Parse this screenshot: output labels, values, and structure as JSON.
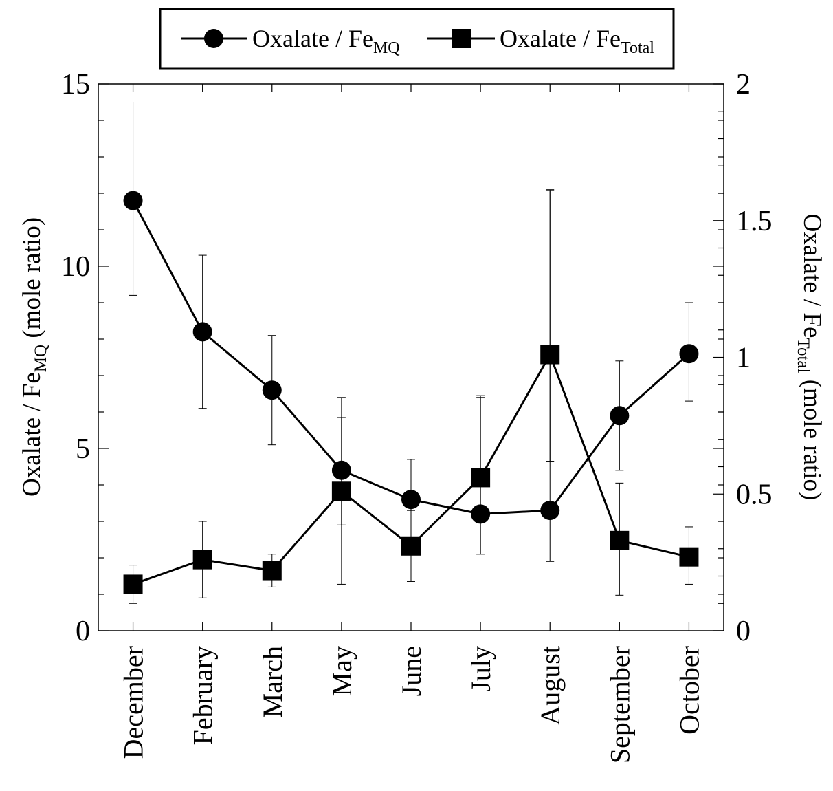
{
  "chart_data": {
    "type": "line",
    "categories": [
      "December",
      "February",
      "March",
      "May",
      "June",
      "July",
      "August",
      "September",
      "October"
    ],
    "legend": {
      "placement": "top-center",
      "items": [
        {
          "base": "Oxalate / Fe",
          "sub": "MQ",
          "marker": "circle"
        },
        {
          "base": "Oxalate / Fe",
          "sub": "Total",
          "marker": "square"
        }
      ]
    },
    "y_left": {
      "label_base": "Oxalate / Fe",
      "label_sub": "MQ",
      "label_tail": " (mole ratio)",
      "lim": [
        0,
        15
      ],
      "ticks": [
        "0",
        "5",
        "10",
        "15"
      ],
      "tick_values": [
        0,
        5,
        10,
        15
      ],
      "minor_step": 1
    },
    "y_right": {
      "label_base": "Oxalate / Fe",
      "label_sub": "Total",
      "label_tail": " (mole ratio)",
      "lim": [
        0,
        2
      ],
      "ticks": [
        "0",
        "0.5",
        "1",
        "1.5",
        "2"
      ],
      "tick_values": [
        0,
        0.5,
        1,
        1.5,
        2
      ],
      "minor_step": 0.1
    },
    "series": [
      {
        "marker": "circle",
        "axis": "left",
        "values": [
          11.8,
          8.2,
          6.6,
          4.4,
          3.6,
          3.2,
          3.3,
          5.9,
          7.6
        ],
        "err_low": [
          9.2,
          6.1,
          5.1,
          2.9,
          3.3,
          2.1,
          1.9,
          4.4,
          6.3
        ],
        "err_high": [
          14.5,
          10.3,
          8.1,
          6.4,
          4.7,
          6.4,
          12.1,
          7.4,
          9.0
        ]
      },
      {
        "marker": "square",
        "axis": "right",
        "values": [
          0.17,
          0.26,
          0.22,
          0.51,
          0.31,
          0.56,
          1.01,
          0.33,
          0.27
        ],
        "err_low": [
          0.1,
          0.12,
          0.16,
          0.17,
          0.18,
          0.28,
          0.62,
          0.13,
          0.17
        ],
        "err_high": [
          0.24,
          0.4,
          0.28,
          0.78,
          0.44,
          0.86,
          1.61,
          0.54,
          0.38
        ]
      }
    ]
  }
}
